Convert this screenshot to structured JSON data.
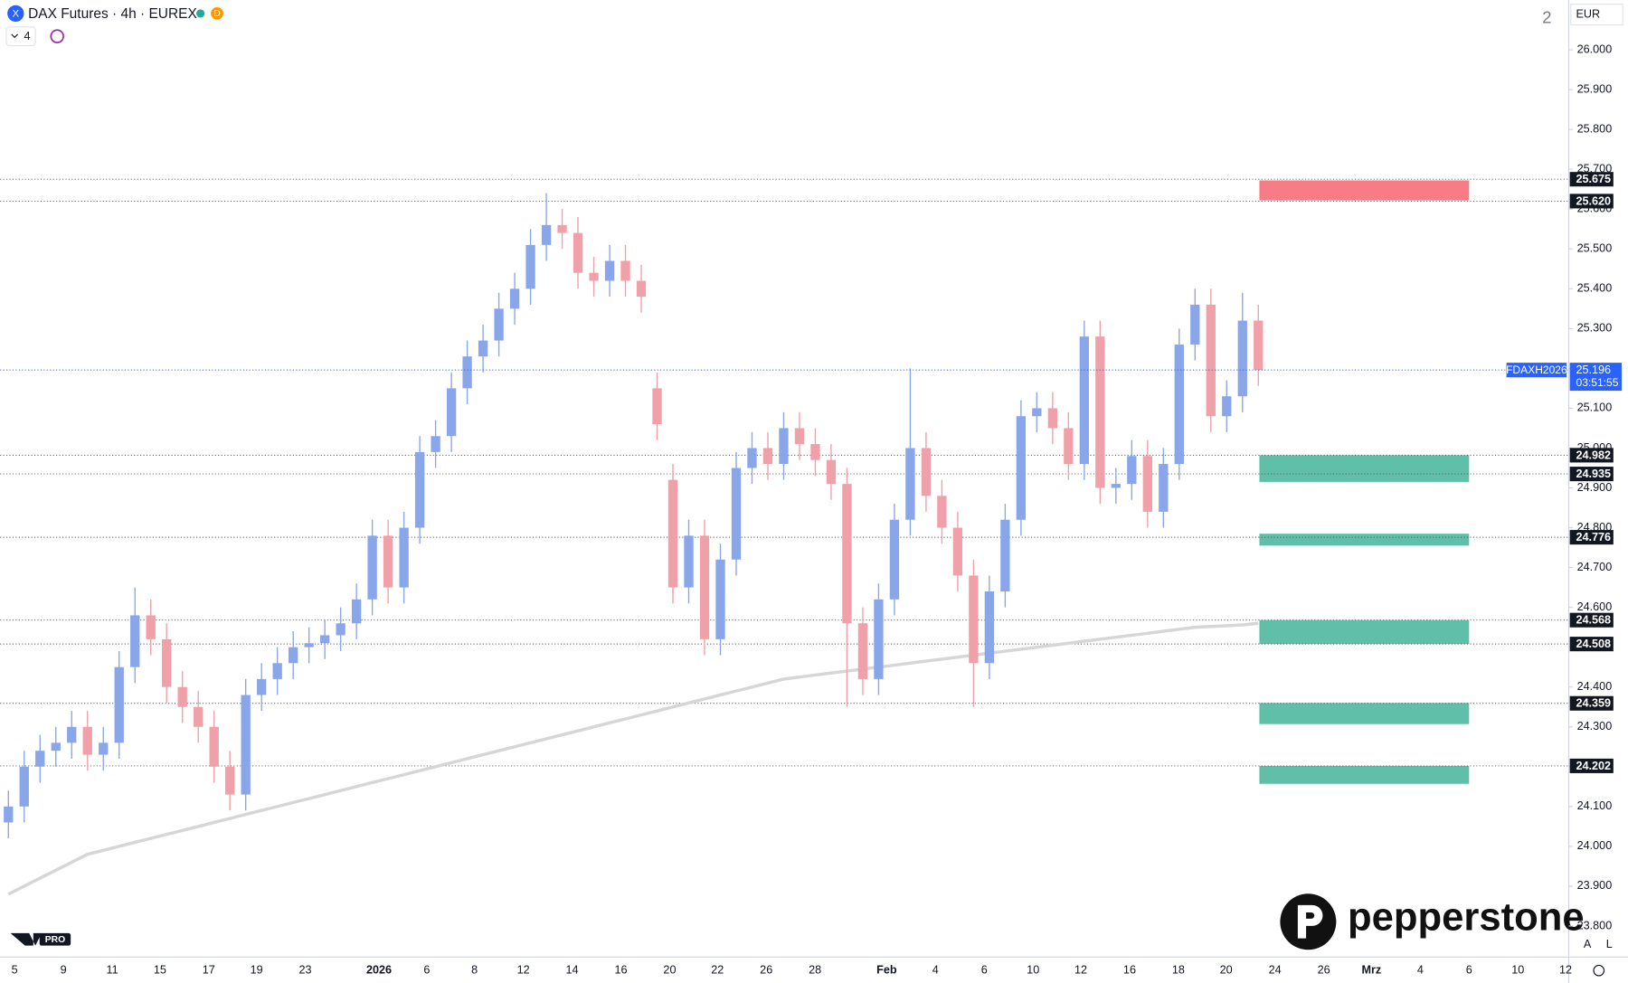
{
  "header": {
    "title": "DAX Futures · 4h · EUREX",
    "badge": "D",
    "interval_count": "4",
    "pane_number": "2",
    "currency": "EUR",
    "auto": "A",
    "log": "L",
    "brand": "pepperstone",
    "plan": "PRO"
  },
  "chart_data": {
    "type": "candlestick",
    "symbol": "FDAXH2026",
    "countdown": "03:51:55",
    "last_price": {
      "value": 25196,
      "label": "25.196"
    },
    "ylim": [
      23722,
      26125
    ],
    "yticks": [
      {
        "value": 23800,
        "label": "23.800"
      },
      {
        "value": 23900,
        "label": "23.900"
      },
      {
        "value": 24000,
        "label": "24.000"
      },
      {
        "value": 24100,
        "label": "24.100"
      },
      {
        "value": 24200,
        "label": "24.200"
      },
      {
        "value": 24300,
        "label": "24.300"
      },
      {
        "value": 24400,
        "label": "24.400"
      },
      {
        "value": 24500,
        "label": "24.500"
      },
      {
        "value": 24600,
        "label": "24.600"
      },
      {
        "value": 24700,
        "label": "24.700"
      },
      {
        "value": 24800,
        "label": "24.800"
      },
      {
        "value": 24900,
        "label": "24.900"
      },
      {
        "value": 25000,
        "label": "25.000"
      },
      {
        "value": 25100,
        "label": "25.100"
      },
      {
        "value": 25200,
        "label": "25.200"
      },
      {
        "value": 25300,
        "label": "25.300"
      },
      {
        "value": 25400,
        "label": "25.400"
      },
      {
        "value": 25500,
        "label": "25.500"
      },
      {
        "value": 25600,
        "label": "25.600"
      },
      {
        "value": 25700,
        "label": "25.700"
      },
      {
        "value": 25800,
        "label": "25.800"
      },
      {
        "value": 25900,
        "label": "25.900"
      },
      {
        "value": 26000,
        "label": "26.000"
      }
    ],
    "xtick_labels": [
      "5",
      "9",
      "11",
      "15",
      "17",
      "19",
      "23",
      "2026",
      "6",
      "8",
      "12",
      "14",
      "16",
      "20",
      "22",
      "26",
      "28",
      "Feb",
      "4",
      "6",
      "10",
      "12",
      "16",
      "18",
      "20",
      "24",
      "26",
      "Mrz",
      "4",
      "6",
      "10",
      "12"
    ],
    "up_color": "#8aa6ea",
    "down_color": "#f0a0a8",
    "open": [
      24060,
      24100,
      24200,
      24240,
      24260,
      24300,
      24230,
      24260,
      24450,
      24580,
      24520,
      24400,
      24350,
      24300,
      24200,
      24130,
      24380,
      24420,
      24460,
      24500,
      24510,
      24530,
      24560,
      24620,
      24780,
      24650,
      24800,
      24990,
      25030,
      25150,
      25230,
      25270,
      25350,
      25400,
      25510,
      25560,
      25540,
      25440,
      25420,
      25470,
      25420,
      25150,
      24920,
      24650,
      24780,
      24520,
      24720,
      24950,
      25000,
      24960,
      25050,
      25010,
      24970,
      24910,
      24560,
      24420,
      24620,
      24820,
      25000,
      24880,
      24800,
      24680,
      24460,
      24640,
      24820,
      25080,
      25100,
      25050,
      24960,
      25280,
      24900,
      24910,
      24980,
      24840,
      24960,
      25260,
      25360,
      25080,
      25130,
      25320
    ],
    "high": [
      24140,
      24240,
      24280,
      24300,
      24340,
      24340,
      24300,
      24490,
      24650,
      24620,
      24560,
      24440,
      24390,
      24340,
      24240,
      24420,
      24460,
      24500,
      24540,
      24550,
      24570,
      24600,
      24660,
      24820,
      24820,
      24840,
      25030,
      25070,
      25190,
      25270,
      25310,
      25390,
      25440,
      25550,
      25640,
      25600,
      25580,
      25480,
      25510,
      25510,
      25460,
      25190,
      24960,
      24820,
      24820,
      24760,
      24990,
      25040,
      25040,
      25090,
      25090,
      25050,
      25010,
      24950,
      24600,
      24660,
      24860,
      25200,
      25040,
      24920,
      24840,
      24720,
      24680,
      24860,
      25120,
      25140,
      25140,
      25090,
      25320,
      25320,
      24950,
      25020,
      25020,
      25000,
      25300,
      25400,
      25400,
      25170,
      25390,
      25360
    ],
    "low": [
      24020,
      24060,
      24160,
      24200,
      24220,
      24190,
      24190,
      24220,
      24410,
      24480,
      24360,
      24310,
      24260,
      24160,
      24090,
      24090,
      24340,
      24380,
      24420,
      24460,
      24470,
      24490,
      24520,
      24580,
      24610,
      24610,
      24760,
      24950,
      24990,
      25110,
      25190,
      25230,
      25310,
      25360,
      25470,
      25500,
      25400,
      25380,
      25380,
      25380,
      25340,
      25020,
      24610,
      24610,
      24480,
      24480,
      24680,
      24910,
      24920,
      24920,
      24970,
      24930,
      24870,
      24350,
      24380,
      24380,
      24580,
      24780,
      24840,
      24760,
      24640,
      24350,
      24420,
      24600,
      24780,
      25040,
      25010,
      24920,
      24920,
      24860,
      24860,
      24870,
      24800,
      24800,
      24920,
      25220,
      25040,
      25040,
      25090,
      25156
    ],
    "close": [
      24100,
      24200,
      24240,
      24260,
      24300,
      24230,
      24260,
      24450,
      24580,
      24520,
      24400,
      24350,
      24300,
      24200,
      24130,
      24380,
      24420,
      24460,
      24500,
      24510,
      24530,
      24560,
      24620,
      24780,
      24650,
      24800,
      24990,
      25030,
      25150,
      25230,
      25270,
      25350,
      25400,
      25510,
      25560,
      25540,
      25440,
      25420,
      25470,
      25420,
      25380,
      25060,
      24650,
      24780,
      24520,
      24720,
      24950,
      25000,
      24960,
      25050,
      25010,
      24970,
      24910,
      24560,
      24420,
      24620,
      24820,
      25000,
      24880,
      24800,
      24680,
      24460,
      24640,
      24820,
      25080,
      25100,
      25050,
      24960,
      25280,
      24900,
      24910,
      24980,
      24840,
      24960,
      25260,
      25360,
      25080,
      25130,
      25320,
      25196
    ],
    "ma_color": "#d6d6d6",
    "ma_values": [
      23880,
      23900,
      23920,
      23940,
      23960,
      23980,
      23990,
      24000,
      24010,
      24020,
      24030,
      24040,
      24050,
      24060,
      24070,
      24080,
      24090,
      24100,
      24110,
      24120,
      24130,
      24140,
      24150,
      24160,
      24170,
      24180,
      24190,
      24200,
      24210,
      24220,
      24230,
      24240,
      24250,
      24260,
      24270,
      24280,
      24290,
      24300,
      24310,
      24320,
      24330,
      24340,
      24350,
      24360,
      24370,
      24380,
      24390,
      24400,
      24410,
      24420,
      24425,
      24430,
      24435,
      24440,
      24445,
      24450,
      24455,
      24460,
      24465,
      24470,
      24475,
      24480,
      24485,
      24490,
      24495,
      24500,
      24505,
      24510,
      24515,
      24520,
      24525,
      24530,
      24535,
      24540,
      24545,
      24550,
      24552,
      24554,
      24556,
      24560
    ],
    "levels": [
      {
        "value": 25675,
        "label": "25.675"
      },
      {
        "value": 25620,
        "label": "25.620"
      },
      {
        "value": 24982,
        "label": "24.982"
      },
      {
        "value": 24935,
        "label": "24.935"
      },
      {
        "value": 24776,
        "label": "24.776"
      },
      {
        "value": 24568,
        "label": "24.568"
      },
      {
        "value": 24508,
        "label": "24.508"
      },
      {
        "value": 24359,
        "label": "24.359"
      },
      {
        "value": 24202,
        "label": "24.202"
      }
    ],
    "zones": [
      {
        "from": 25672,
        "to": 25622,
        "color": "#f77c85"
      },
      {
        "from": 24982,
        "to": 24915,
        "color": "#5fbfa8"
      },
      {
        "from": 24785,
        "to": 24755,
        "color": "#5fbfa8"
      },
      {
        "from": 24568,
        "to": 24508,
        "color": "#5fbfa8"
      },
      {
        "from": 24360,
        "to": 24307,
        "color": "#5fbfa8"
      },
      {
        "from": 24202,
        "to": 24157,
        "color": "#5fbfa8"
      }
    ]
  }
}
